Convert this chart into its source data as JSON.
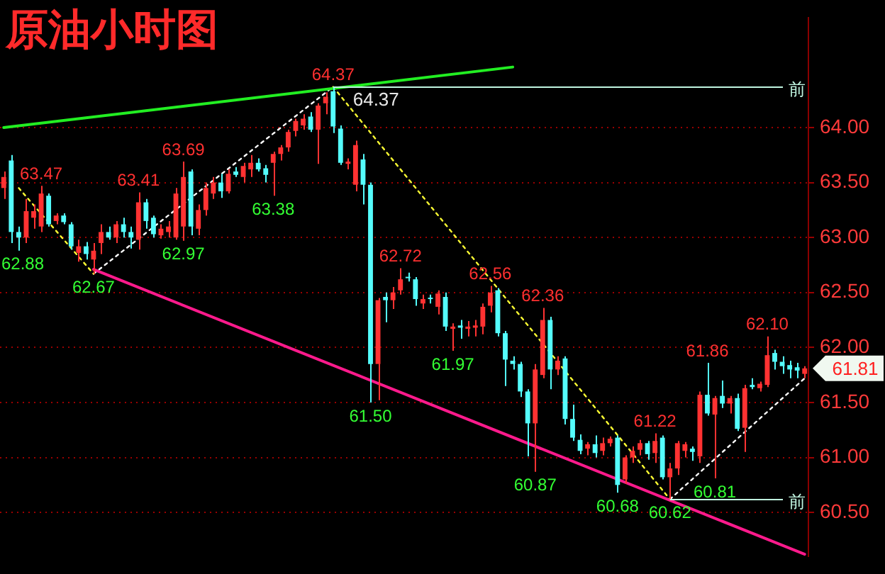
{
  "chart_data": {
    "type": "candlestick",
    "title": "原油小时图",
    "categories": [
      null,
      null,
      null,
      null,
      null,
      null,
      null,
      null,
      null,
      null,
      null,
      null,
      null,
      null,
      null,
      null,
      null,
      null,
      null,
      null,
      null,
      null,
      null,
      null,
      null,
      null,
      null,
      null,
      null,
      null,
      null,
      null,
      null,
      null,
      null,
      null,
      null,
      null,
      null,
      null,
      null,
      null,
      null,
      null,
      null,
      null,
      null,
      null,
      null,
      null,
      null,
      null,
      null,
      null,
      null,
      null,
      null,
      null,
      null,
      null,
      null,
      null,
      null,
      null,
      null,
      null,
      null,
      null,
      null,
      null,
      null,
      null,
      null,
      null,
      null,
      null,
      null,
      null,
      null,
      null,
      null,
      null,
      null,
      null,
      null,
      null,
      null,
      null,
      null,
      null,
      null,
      null,
      null,
      null,
      null,
      null,
      null,
      null,
      null,
      null,
      null,
      null,
      null,
      null,
      null,
      null,
      null,
      null
    ],
    "ohlc": [
      [
        63.45,
        63.6,
        63.35,
        63.55
      ],
      [
        63.7,
        63.75,
        62.95,
        63.05
      ],
      [
        63.05,
        63.1,
        62.88,
        63.0
      ],
      [
        63.0,
        63.35,
        62.95,
        63.24
      ],
      [
        63.18,
        63.3,
        63.08,
        63.24
      ],
      [
        63.1,
        63.47,
        63.05,
        63.4
      ],
      [
        63.38,
        63.4,
        63.1,
        63.12
      ],
      [
        63.15,
        63.22,
        63.12,
        63.2
      ],
      [
        63.2,
        63.22,
        63.12,
        63.14
      ],
      [
        63.12,
        63.14,
        62.89,
        62.92
      ],
      [
        62.86,
        62.98,
        62.78,
        62.92
      ],
      [
        62.92,
        62.96,
        62.8,
        62.85
      ],
      [
        62.8,
        62.95,
        62.67,
        62.88
      ],
      [
        62.95,
        63.12,
        62.85,
        63.05
      ],
      [
        63.05,
        63.1,
        62.98,
        63.0
      ],
      [
        63.0,
        63.15,
        62.95,
        63.12
      ],
      [
        63.12,
        63.18,
        63.0,
        63.05
      ],
      [
        63.05,
        63.1,
        62.9,
        63.0
      ],
      [
        62.98,
        63.41,
        62.89,
        63.32
      ],
      [
        63.32,
        63.35,
        63.08,
        63.15
      ],
      [
        63.18,
        63.2,
        63.0,
        63.03
      ],
      [
        63.02,
        63.12,
        62.99,
        63.08
      ],
      [
        63.05,
        63.15,
        63.0,
        63.1
      ],
      [
        63.0,
        63.45,
        62.98,
        63.4
      ],
      [
        63.1,
        63.69,
        62.97,
        63.55
      ],
      [
        63.6,
        63.62,
        63.02,
        63.1
      ],
      [
        63.08,
        63.3,
        63.02,
        63.25
      ],
      [
        63.25,
        63.5,
        63.2,
        63.45
      ],
      [
        63.4,
        63.55,
        63.35,
        63.5
      ],
      [
        63.5,
        63.58,
        63.36,
        63.42
      ],
      [
        63.42,
        63.62,
        63.4,
        63.58
      ],
      [
        63.6,
        63.64,
        63.55,
        63.57
      ],
      [
        63.55,
        63.68,
        63.5,
        63.65
      ],
      [
        63.62,
        63.75,
        63.55,
        63.68
      ],
      [
        63.68,
        63.72,
        63.6,
        63.62
      ],
      [
        63.63,
        63.66,
        63.5,
        63.57
      ],
      [
        63.68,
        63.78,
        63.38,
        63.76
      ],
      [
        63.76,
        63.84,
        63.7,
        63.82
      ],
      [
        63.82,
        63.98,
        63.78,
        63.96
      ],
      [
        63.97,
        64.08,
        63.92,
        64.06
      ],
      [
        64.02,
        64.12,
        63.98,
        64.08
      ],
      [
        64.1,
        64.14,
        63.96,
        63.98
      ],
      [
        63.98,
        64.22,
        63.67,
        64.2
      ],
      [
        64.22,
        64.32,
        64.12,
        64.28
      ],
      [
        64.33,
        64.37,
        63.95,
        64.01
      ],
      [
        63.99,
        64.02,
        63.66,
        63.68
      ],
      [
        63.67,
        63.72,
        63.62,
        63.69
      ],
      [
        63.48,
        63.88,
        63.42,
        63.84
      ],
      [
        63.71,
        63.76,
        63.3,
        63.48
      ],
      [
        63.48,
        63.5,
        61.5,
        61.85
      ],
      [
        61.85,
        62.45,
        61.52,
        62.43
      ],
      [
        62.46,
        62.5,
        62.23,
        62.43
      ],
      [
        62.43,
        62.55,
        62.35,
        62.5
      ],
      [
        62.52,
        62.72,
        62.48,
        62.62
      ],
      [
        62.64,
        62.68,
        62.6,
        62.63
      ],
      [
        62.62,
        62.64,
        62.38,
        62.44
      ],
      [
        62.4,
        62.48,
        62.35,
        62.44
      ],
      [
        62.45,
        62.48,
        62.4,
        62.44
      ],
      [
        62.37,
        62.52,
        62.3,
        62.49
      ],
      [
        62.46,
        62.5,
        62.15,
        62.19
      ],
      [
        62.17,
        62.22,
        61.97,
        62.19
      ],
      [
        62.2,
        62.25,
        62.08,
        62.18
      ],
      [
        62.17,
        62.24,
        62.1,
        62.19
      ],
      [
        62.18,
        62.25,
        62.1,
        62.2
      ],
      [
        62.19,
        62.4,
        62.12,
        62.37
      ],
      [
        62.38,
        62.56,
        62.32,
        62.5
      ],
      [
        62.52,
        62.54,
        62.1,
        62.13
      ],
      [
        62.13,
        62.15,
        61.65,
        61.89
      ],
      [
        61.88,
        61.92,
        61.8,
        61.85
      ],
      [
        61.85,
        61.87,
        61.55,
        61.6
      ],
      [
        61.6,
        61.62,
        61.01,
        61.31
      ],
      [
        61.31,
        61.85,
        60.87,
        61.8
      ],
      [
        61.75,
        62.36,
        61.72,
        62.25
      ],
      [
        62.25,
        62.28,
        61.62,
        61.8
      ],
      [
        61.8,
        61.92,
        61.75,
        61.88
      ],
      [
        61.9,
        61.92,
        61.3,
        61.35
      ],
      [
        61.35,
        61.48,
        61.15,
        61.18
      ],
      [
        61.16,
        61.21,
        61.03,
        61.06
      ],
      [
        61.08,
        61.14,
        61.02,
        61.12
      ],
      [
        61.12,
        61.2,
        61.0,
        61.04
      ],
      [
        61.06,
        61.18,
        61.02,
        61.13
      ],
      [
        61.13,
        61.19,
        61.1,
        61.17
      ],
      [
        61.18,
        61.2,
        60.68,
        60.75
      ],
      [
        60.8,
        61.02,
        60.76,
        61.0
      ],
      [
        61.0,
        61.1,
        60.95,
        61.06
      ],
      [
        61.07,
        61.16,
        61.02,
        61.13
      ],
      [
        61.13,
        61.15,
        60.98,
        61.03
      ],
      [
        61.04,
        61.22,
        60.95,
        61.15
      ],
      [
        61.18,
        61.2,
        60.8,
        60.82
      ],
      [
        60.82,
        60.95,
        60.62,
        60.9
      ],
      [
        60.9,
        61.15,
        60.84,
        61.13
      ],
      [
        61.06,
        61.14,
        61.0,
        61.12
      ],
      [
        61.08,
        61.1,
        60.97,
        61.05
      ],
      [
        61.01,
        61.6,
        60.95,
        61.57
      ],
      [
        61.57,
        61.86,
        61.38,
        61.4
      ],
      [
        61.39,
        61.56,
        60.81,
        61.54
      ],
      [
        61.56,
        61.7,
        61.45,
        61.49
      ],
      [
        61.49,
        61.56,
        61.4,
        61.54
      ],
      [
        61.54,
        61.58,
        61.24,
        61.26
      ],
      [
        61.27,
        61.66,
        61.05,
        61.63
      ],
      [
        61.66,
        61.72,
        61.62,
        61.64
      ],
      [
        61.63,
        61.69,
        61.6,
        61.67
      ],
      [
        61.66,
        62.1,
        61.64,
        61.93
      ],
      [
        61.95,
        61.98,
        61.8,
        61.87
      ],
      [
        61.87,
        61.92,
        61.76,
        61.83
      ],
      [
        61.84,
        61.88,
        61.72,
        61.8
      ],
      [
        61.82,
        61.86,
        61.72,
        61.79
      ],
      [
        61.76,
        61.83,
        61.72,
        61.81
      ]
    ],
    "colors": [
      "#ff3232",
      "#54fcfc",
      "#54fcfc",
      "#ff3232",
      "#ff3232",
      "#ff3232",
      "#54fcfc",
      "#ff3232",
      "#54fcfc",
      "#54fcfc",
      "#ff3232",
      "#54fcfc",
      "#ff3232",
      "#ff3232",
      "#54fcfc",
      "#ff3232",
      "#54fcfc",
      "#54fcfc",
      "#ff3232",
      "#54fcfc",
      "#54fcfc",
      "#ff3232",
      "#ff3232",
      "#ff3232",
      "#ff3232",
      "#54fcfc",
      "#ff3232",
      "#ff3232",
      "#ff3232",
      "#54fcfc",
      "#ff3232",
      "#54fcfc",
      "#ff3232",
      "#ff3232",
      "#54fcfc",
      "#54fcfc",
      "#ff3232",
      "#ff3232",
      "#ff3232",
      "#ff3232",
      "#ff3232",
      "#54fcfc",
      "#ff3232",
      "#ff3232",
      "#54fcfc",
      "#54fcfc",
      "#ff3232",
      "#ff3232",
      "#54fcfc",
      "#54fcfc",
      "#ff3232",
      "#54fcfc",
      "#ff3232",
      "#ff3232",
      "#54fcfc",
      "#54fcfc",
      "#ff3232",
      "#54fcfc",
      "#ff3232",
      "#54fcfc",
      "#ff3232",
      "#54fcfc",
      "#ff3232",
      "#ff3232",
      "#ff3232",
      "#ff3232",
      "#54fcfc",
      "#54fcfc",
      "#54fcfc",
      "#54fcfc",
      "#54fcfc",
      "#ff3232",
      "#ff3232",
      "#54fcfc",
      "#ff3232",
      "#54fcfc",
      "#54fcfc",
      "#54fcfc",
      "#ff3232",
      "#54fcfc",
      "#ff3232",
      "#ff3232",
      "#54fcfc",
      "#ff3232",
      "#ff3232",
      "#ff3232",
      "#54fcfc",
      "#ff3232",
      "#54fcfc",
      "#ff3232",
      "#ff3232",
      "#ff3232",
      "#54fcfc",
      "#ff3232",
      "#54fcfc",
      "#ff3232",
      "#54fcfc",
      "#ff3232",
      "#54fcfc",
      "#ff3232",
      "#54fcfc",
      "#ff3232",
      "#ff3232",
      "#54fcfc",
      "#54fcfc",
      "#54fcfc",
      "#54fcfc",
      "#ff3232"
    ],
    "series": [
      {
        "type": "line",
        "color": "#22ee22",
        "line_style": "solid",
        "values": [
          64.0,
          null,
          null,
          null,
          null,
          null,
          null,
          null,
          null,
          null,
          null,
          null,
          null,
          null,
          null,
          null,
          null,
          null,
          null,
          null,
          null,
          null,
          null,
          null,
          null,
          null,
          null,
          null,
          null,
          null,
          null,
          null,
          null,
          null,
          null,
          null,
          null,
          null,
          null,
          null,
          null,
          null,
          null,
          null,
          null,
          null,
          null,
          null,
          null,
          null,
          null,
          null,
          null,
          null,
          null,
          null,
          null,
          null,
          null,
          null,
          null,
          null,
          null,
          null,
          null,
          null,
          null,
          null,
          64.55,
          null,
          null,
          null,
          null,
          null,
          null,
          null,
          null,
          null,
          null,
          null,
          null,
          null,
          null,
          null,
          null,
          null,
          null,
          null,
          null,
          null,
          null,
          null,
          null,
          null,
          null,
          null,
          null,
          null,
          null,
          null,
          null,
          null,
          null,
          null,
          null,
          null,
          null,
          null
        ]
      },
      {
        "type": "line",
        "color": "#ff1a8c",
        "line_style": "solid",
        "values": [
          null,
          null,
          null,
          null,
          null,
          null,
          null,
          null,
          null,
          null,
          null,
          null,
          62.71,
          null,
          null,
          null,
          null,
          null,
          null,
          null,
          null,
          null,
          null,
          null,
          null,
          null,
          null,
          null,
          null,
          null,
          null,
          null,
          null,
          null,
          null,
          null,
          null,
          null,
          null,
          null,
          null,
          null,
          null,
          null,
          null,
          null,
          null,
          null,
          null,
          null,
          null,
          null,
          null,
          null,
          null,
          null,
          null,
          null,
          null,
          null,
          null,
          null,
          null,
          null,
          null,
          null,
          null,
          null,
          null,
          null,
          null,
          null,
          null,
          null,
          null,
          null,
          null,
          null,
          null,
          null,
          null,
          null,
          null,
          null,
          null,
          null,
          null,
          null,
          null,
          null,
          null,
          null,
          null,
          null,
          null,
          null,
          null,
          null,
          null,
          null,
          null,
          null,
          null,
          null,
          null,
          null,
          null,
          60.12
        ]
      },
      {
        "type": "line",
        "color": "#ffff33",
        "line_style": "dotted",
        "values": [
          null,
          null,
          63.45,
          null,
          null,
          null,
          null,
          null,
          null,
          null,
          null,
          null,
          62.67,
          null,
          null,
          null,
          null,
          null,
          null,
          null,
          null,
          null,
          null,
          null,
          null,
          null,
          null,
          null,
          null,
          null,
          null,
          null,
          null,
          null,
          null,
          null,
          null,
          null,
          null,
          null,
          null,
          null,
          null,
          null,
          null,
          null,
          null,
          null,
          null,
          null,
          null,
          null,
          null,
          null,
          null,
          null,
          null,
          null,
          null,
          null,
          null,
          null,
          null,
          null,
          null,
          null,
          null,
          null,
          null,
          null,
          null,
          null,
          null,
          null,
          null,
          null,
          null,
          null,
          null,
          null,
          null,
          null,
          null,
          null,
          null,
          null,
          null,
          null,
          null,
          null,
          null,
          null,
          null,
          null,
          null,
          null,
          null,
          null,
          null,
          null,
          null,
          null,
          null,
          null,
          null,
          null,
          null,
          null
        ]
      },
      {
        "type": "line",
        "color": "#ffffff",
        "line_style": "dotted",
        "values": [
          null,
          null,
          null,
          null,
          null,
          null,
          null,
          null,
          null,
          null,
          null,
          null,
          62.67,
          null,
          null,
          null,
          null,
          null,
          null,
          null,
          null,
          null,
          null,
          null,
          null,
          null,
          null,
          null,
          null,
          null,
          null,
          null,
          null,
          null,
          null,
          null,
          null,
          null,
          null,
          null,
          null,
          null,
          null,
          null,
          64.37,
          null,
          null,
          null,
          null,
          null,
          null,
          null,
          null,
          null,
          null,
          null,
          null,
          null,
          null,
          null,
          null,
          null,
          null,
          null,
          null,
          null,
          null,
          null,
          null,
          null,
          null,
          null,
          null,
          null,
          null,
          null,
          null,
          null,
          null,
          null,
          null,
          null,
          null,
          null,
          null,
          null,
          null,
          null,
          null,
          null,
          null,
          null,
          null,
          null,
          null,
          null,
          null,
          null,
          null,
          null,
          null,
          null,
          null,
          null,
          null,
          null,
          null,
          null
        ]
      },
      {
        "type": "line",
        "color": "#ffff33",
        "line_style": "dotted",
        "values": [
          null,
          null,
          null,
          null,
          null,
          null,
          null,
          null,
          null,
          null,
          null,
          null,
          null,
          null,
          null,
          null,
          null,
          null,
          null,
          null,
          null,
          null,
          null,
          null,
          null,
          null,
          null,
          null,
          null,
          null,
          null,
          null,
          null,
          null,
          null,
          null,
          null,
          null,
          null,
          null,
          null,
          null,
          null,
          null,
          64.37,
          null,
          null,
          null,
          null,
          null,
          null,
          null,
          null,
          null,
          null,
          null,
          null,
          null,
          null,
          null,
          null,
          null,
          null,
          null,
          null,
          null,
          null,
          null,
          null,
          null,
          null,
          null,
          null,
          null,
          null,
          null,
          null,
          null,
          null,
          null,
          null,
          null,
          null,
          null,
          null,
          null,
          null,
          null,
          null,
          60.62,
          null,
          null,
          null,
          null,
          null,
          null,
          null,
          null,
          null,
          null,
          null,
          null,
          null,
          null,
          null,
          null,
          null,
          null
        ]
      },
      {
        "type": "line",
        "color": "#ffffff",
        "line_style": "dotted",
        "values": [
          null,
          null,
          null,
          null,
          null,
          null,
          null,
          null,
          null,
          null,
          null,
          null,
          null,
          null,
          null,
          null,
          null,
          null,
          null,
          null,
          null,
          null,
          null,
          null,
          null,
          null,
          null,
          null,
          null,
          null,
          null,
          null,
          null,
          null,
          null,
          null,
          null,
          null,
          null,
          null,
          null,
          null,
          null,
          null,
          null,
          null,
          null,
          null,
          null,
          null,
          null,
          null,
          null,
          null,
          null,
          null,
          null,
          null,
          null,
          null,
          null,
          null,
          null,
          null,
          null,
          null,
          null,
          null,
          null,
          null,
          null,
          null,
          null,
          null,
          null,
          null,
          null,
          null,
          null,
          null,
          null,
          null,
          null,
          null,
          null,
          null,
          null,
          null,
          null,
          60.62,
          null,
          null,
          null,
          null,
          null,
          null,
          null,
          null,
          null,
          null,
          null,
          null,
          null,
          null,
          null,
          null,
          null,
          61.72
        ]
      }
    ],
    "ylim": [
      60.1,
      65.0
    ],
    "yticks": [
      {
        "value": 60.5,
        "label": "60.50"
      },
      {
        "value": 61,
        "label": "61.00"
      },
      {
        "value": 61.5,
        "label": "61.50"
      },
      {
        "value": 62,
        "label": "62.00"
      },
      {
        "value": 62.5,
        "label": "62.50"
      },
      {
        "value": 63,
        "label": "63.00"
      },
      {
        "value": 63.5,
        "label": "63.50"
      },
      {
        "value": 64,
        "label": "64.00"
      }
    ],
    "grid": "y",
    "legend": false,
    "tick_labels": "y",
    "ref_lines": [
      {
        "axis": "y",
        "value": 64.37,
        "label": "前",
        "color": "#c0f5e0"
      },
      {
        "axis": "y",
        "value": 60.62,
        "label": "前",
        "color": "#c0f5e0"
      }
    ],
    "annotations": [
      "64.37",
      {
        "text": "63.47",
        "y": 63.47
      },
      {
        "text": "62.88",
        "y": 62.88
      },
      {
        "text": "62.67",
        "y": 62.67
      },
      {
        "text": "63.41",
        "y": 63.41
      },
      {
        "text": "62.97",
        "y": 62.97
      },
      {
        "text": "63.69",
        "y": 63.69
      },
      {
        "text": "63.38",
        "y": 63.38
      },
      {
        "text": "64.37",
        "y": 64.37
      },
      {
        "text": "61.50",
        "y": 61.5
      },
      {
        "text": "62.72",
        "y": 62.72
      },
      {
        "text": "61.97",
        "y": 61.97
      },
      {
        "text": "62.56",
        "y": 62.56
      },
      {
        "text": "60.87",
        "y": 60.87
      },
      {
        "text": "62.36",
        "y": 62.36
      },
      {
        "text": "60.68",
        "y": 60.68
      },
      {
        "text": "61.22",
        "y": 61.22
      },
      {
        "text": "60.62",
        "y": 60.62
      },
      {
        "text": "61.86",
        "y": 61.86
      },
      {
        "text": "60.81",
        "y": 60.81
      },
      {
        "text": "62.10",
        "y": 62.1
      },
      "61.81"
    ]
  }
}
